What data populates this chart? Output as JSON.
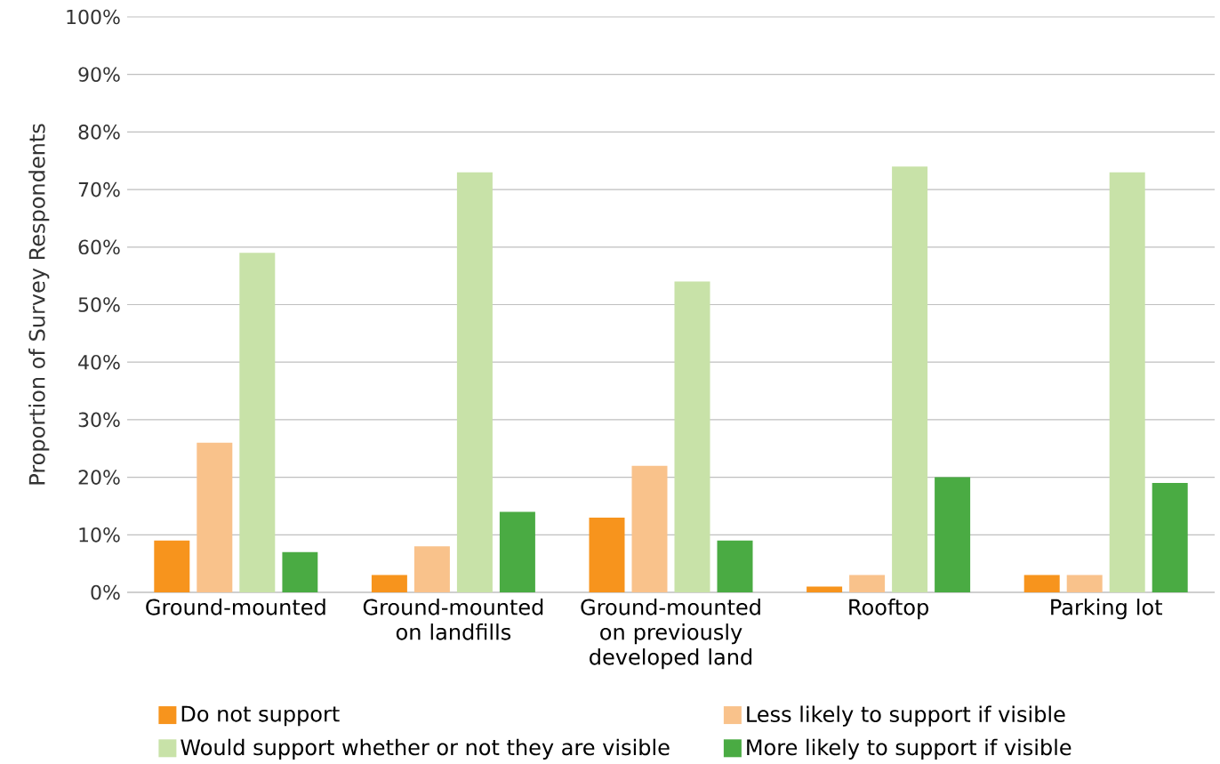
{
  "chart_data": {
    "type": "bar",
    "ylabel": "Proportion of Survey Respondents",
    "categories": [
      "Ground-mounted",
      "Ground-mounted on landfills",
      "Ground-mounted on previously developed land",
      "Rooftop",
      "Parking lot"
    ],
    "series": [
      {
        "name": "Do not support",
        "color": "#f7941d",
        "values": [
          9,
          3,
          13,
          1,
          3
        ]
      },
      {
        "name": "Less likely to support if visible",
        "color": "#f9c28b",
        "values": [
          26,
          8,
          22,
          3,
          3
        ]
      },
      {
        "name": "Would support whether or not they are visible",
        "color": "#c8e2a8",
        "values": [
          59,
          73,
          54,
          74,
          73
        ]
      },
      {
        "name": "More likely to support if visible",
        "color": "#4aab43",
        "values": [
          7,
          14,
          9,
          20,
          19
        ]
      }
    ],
    "ylim": [
      0,
      100
    ],
    "yticks": [
      {
        "value": 0,
        "label": "0%"
      },
      {
        "value": 10,
        "label": "10%"
      },
      {
        "value": 20,
        "label": "20%"
      },
      {
        "value": 30,
        "label": "30%"
      },
      {
        "value": 40,
        "label": "40%"
      },
      {
        "value": 50,
        "label": "50%"
      },
      {
        "value": 60,
        "label": "60%"
      },
      {
        "value": 70,
        "label": "70%"
      },
      {
        "value": 80,
        "label": "80%"
      },
      {
        "value": 90,
        "label": "90%"
      },
      {
        "value": 100,
        "label": "100%"
      }
    ],
    "grid": "y",
    "legend": "bottom"
  }
}
